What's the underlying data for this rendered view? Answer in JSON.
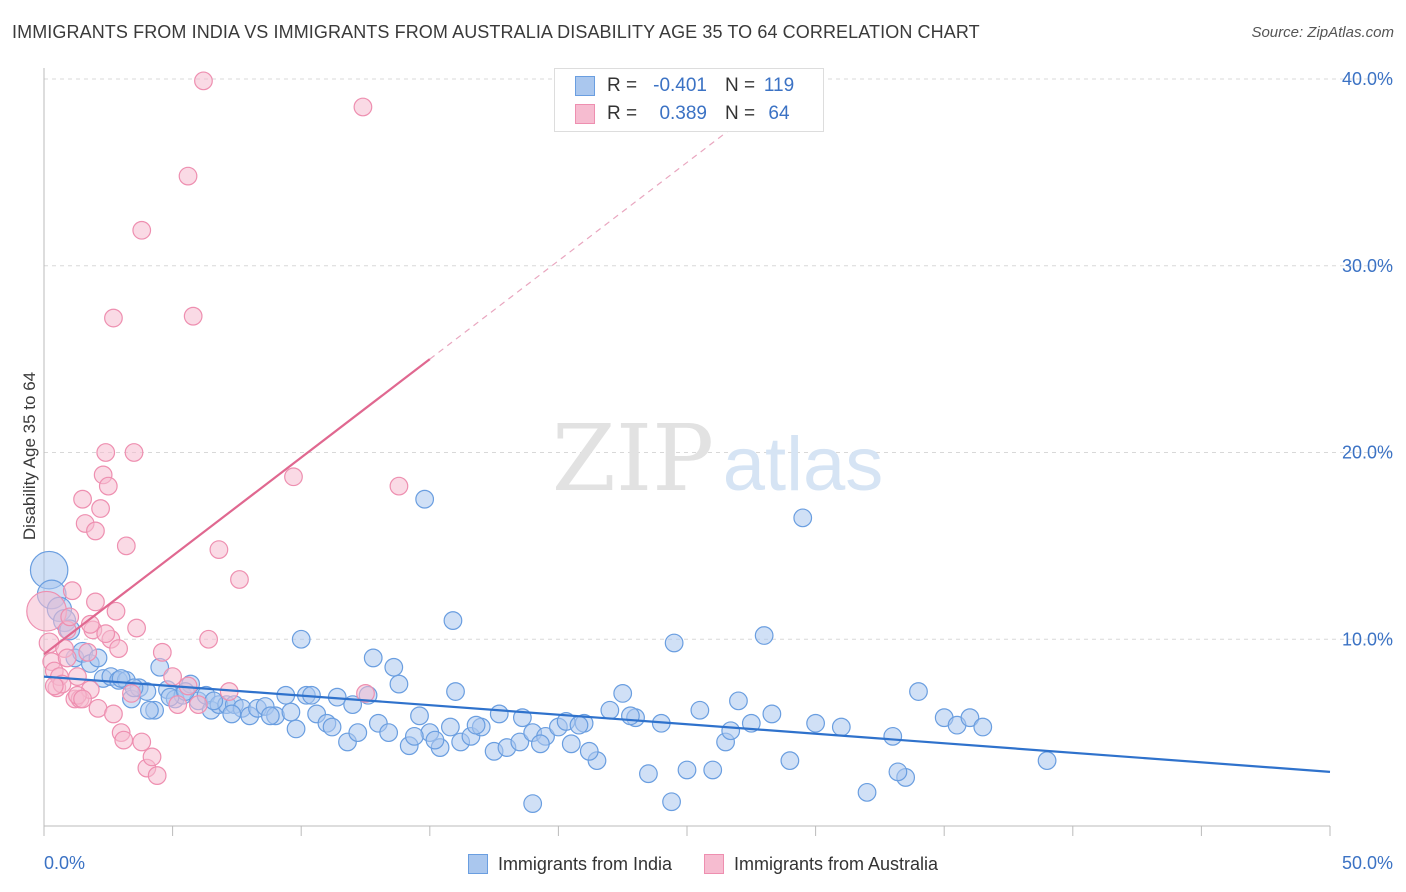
{
  "title": "IMMIGRANTS FROM INDIA VS IMMIGRANTS FROM AUSTRALIA DISABILITY AGE 35 TO 64 CORRELATION CHART",
  "source": "Source: ZipAtlas.com",
  "watermark": {
    "zip": "ZIP",
    "atlas": "atlas"
  },
  "stats": [
    {
      "r_label": "R =",
      "r_value": "-0.401",
      "n_label": "N =",
      "n_value": "119"
    },
    {
      "r_label": "R =",
      "r_value": "0.389",
      "n_label": "N =",
      "n_value": "64"
    }
  ],
  "legend": [
    "Immigrants from India",
    "Immigrants from Australia"
  ],
  "colors": {
    "india_fill": "#aac7ee",
    "india_stroke": "#6a9ee0",
    "india_line": "#2f72cc",
    "australia_fill": "#f6bcd0",
    "australia_stroke": "#ee8fb0",
    "australia_line": "#e06890",
    "grid": "#d8d8d8",
    "tick_label": "#3b72c4"
  },
  "chart_data": {
    "type": "scatter",
    "title": "IMMIGRANTS FROM INDIA VS IMMIGRANTS FROM AUSTRALIA DISABILITY AGE 35 TO 64 CORRELATION CHART",
    "xlabel": "",
    "ylabel": "Disability Age 35 to 64",
    "xlim": [
      0,
      50
    ],
    "ylim": [
      0,
      40
    ],
    "x_tick_labels": [
      {
        "value": 0,
        "label": "0.0%"
      },
      {
        "value": 50,
        "label": "50.0%"
      }
    ],
    "y_tick_labels": [
      {
        "value": 10,
        "label": "10.0%"
      },
      {
        "value": 20,
        "label": "20.0%"
      },
      {
        "value": 30,
        "label": "30.0%"
      },
      {
        "value": 40,
        "label": "40.0%"
      }
    ],
    "grid": true,
    "legend_position": "bottom",
    "series": [
      {
        "name": "Immigrants from India",
        "r": -0.401,
        "n": 119,
        "trend": {
          "x": [
            0,
            50
          ],
          "y": [
            8.0,
            2.9
          ],
          "dashed_x": null
        },
        "points": [
          [
            0.2,
            13.7,
            17
          ],
          [
            0.3,
            12.4,
            13
          ],
          [
            0.6,
            11.6,
            11
          ],
          [
            0.8,
            11.0,
            10
          ],
          [
            1.0,
            10.5,
            9
          ],
          [
            1.2,
            9.0,
            8
          ],
          [
            1.5,
            9.3,
            9
          ],
          [
            1.8,
            8.7,
            8
          ],
          [
            2.1,
            9.0,
            8
          ],
          [
            2.3,
            7.9,
            8
          ],
          [
            2.6,
            8.0,
            8
          ],
          [
            2.9,
            7.8,
            8
          ],
          [
            3.2,
            7.8,
            8
          ],
          [
            3.4,
            6.8,
            8
          ],
          [
            3.7,
            7.4,
            8
          ],
          [
            4.0,
            7.2,
            8
          ],
          [
            4.3,
            6.2,
            8
          ],
          [
            4.5,
            8.5,
            8
          ],
          [
            4.8,
            7.3,
            8
          ],
          [
            5.1,
            6.8,
            8
          ],
          [
            5.4,
            7.0,
            8
          ],
          [
            5.7,
            7.6,
            8
          ],
          [
            6.0,
            6.7,
            8
          ],
          [
            6.3,
            7.0,
            8
          ],
          [
            6.5,
            6.2,
            8
          ],
          [
            6.8,
            6.5,
            8
          ],
          [
            7.1,
            6.5,
            8
          ],
          [
            7.4,
            6.5,
            8
          ],
          [
            7.7,
            6.3,
            8
          ],
          [
            8.0,
            5.9,
            8
          ],
          [
            8.3,
            6.3,
            8
          ],
          [
            8.6,
            6.4,
            8
          ],
          [
            9.0,
            5.9,
            8
          ],
          [
            9.4,
            7.0,
            8
          ],
          [
            9.8,
            5.2,
            8
          ],
          [
            10.2,
            7.0,
            8
          ],
          [
            10.6,
            6.0,
            8
          ],
          [
            11.0,
            5.5,
            8
          ],
          [
            11.4,
            6.9,
            8
          ],
          [
            11.8,
            4.5,
            8
          ],
          [
            12.2,
            5.0,
            8
          ],
          [
            12.6,
            7.0,
            8
          ],
          [
            13.0,
            5.5,
            8
          ],
          [
            13.4,
            5.0,
            8
          ],
          [
            13.8,
            7.6,
            8
          ],
          [
            14.2,
            4.3,
            8
          ],
          [
            14.6,
            5.9,
            8
          ],
          [
            15.0,
            5.0,
            8
          ],
          [
            15.4,
            4.2,
            8
          ],
          [
            15.8,
            5.3,
            8
          ],
          [
            16.2,
            4.5,
            8
          ],
          [
            16.6,
            4.8,
            8
          ],
          [
            17.0,
            5.3,
            8
          ],
          [
            17.5,
            4.0,
            8
          ],
          [
            18.0,
            4.2,
            8
          ],
          [
            18.5,
            4.5,
            8
          ],
          [
            19.0,
            5.0,
            8
          ],
          [
            19.5,
            4.8,
            8
          ],
          [
            20.0,
            5.3,
            8
          ],
          [
            20.5,
            4.4,
            8
          ],
          [
            21.0,
            5.5,
            8
          ],
          [
            21.5,
            3.5,
            8
          ],
          [
            22.0,
            6.2,
            8
          ],
          [
            3.0,
            7.9,
            8
          ],
          [
            3.5,
            7.4,
            8
          ],
          [
            4.1,
            6.2,
            8
          ],
          [
            4.9,
            6.9,
            8
          ],
          [
            5.5,
            7.2,
            8
          ],
          [
            6.6,
            6.7,
            8
          ],
          [
            7.3,
            6.0,
            8
          ],
          [
            8.8,
            5.9,
            8
          ],
          [
            9.6,
            6.1,
            8
          ],
          [
            10.4,
            7.0,
            8
          ],
          [
            11.2,
            5.3,
            8
          ],
          [
            12.0,
            6.5,
            8
          ],
          [
            12.8,
            9.0,
            8
          ],
          [
            13.6,
            8.5,
            8
          ],
          [
            14.4,
            4.8,
            8
          ],
          [
            15.2,
            4.6,
            8
          ],
          [
            16.0,
            7.2,
            8
          ],
          [
            16.8,
            5.4,
            8
          ],
          [
            17.7,
            6.0,
            8
          ],
          [
            18.6,
            5.8,
            8
          ],
          [
            19.3,
            4.4,
            8
          ],
          [
            20.3,
            5.6,
            8
          ],
          [
            21.2,
            4.0,
            8
          ],
          [
            22.5,
            7.1,
            8
          ],
          [
            23.0,
            5.8,
            8
          ],
          [
            23.5,
            2.8,
            8
          ],
          [
            24.0,
            5.5,
            8
          ],
          [
            24.5,
            9.8,
            8
          ],
          [
            25.0,
            3.0,
            8
          ],
          [
            25.5,
            6.2,
            8
          ],
          [
            26.0,
            3.0,
            8
          ],
          [
            26.5,
            4.5,
            8
          ],
          [
            27.0,
            6.7,
            8
          ],
          [
            27.5,
            5.5,
            8
          ],
          [
            28.0,
            10.2,
            8
          ],
          [
            28.3,
            6.0,
            8
          ],
          [
            29.0,
            3.5,
            8
          ],
          [
            29.5,
            16.5,
            8
          ],
          [
            30.0,
            5.5,
            8
          ],
          [
            31.0,
            5.3,
            8
          ],
          [
            32.0,
            1.8,
            8
          ],
          [
            33.0,
            4.8,
            8
          ],
          [
            33.5,
            2.6,
            8
          ],
          [
            34.0,
            7.2,
            8
          ],
          [
            35.0,
            5.8,
            8
          ],
          [
            35.5,
            5.4,
            8
          ],
          [
            36.0,
            5.8,
            8
          ],
          [
            36.5,
            5.3,
            8
          ],
          [
            39.0,
            3.5,
            8
          ],
          [
            14.8,
            17.5,
            8
          ],
          [
            10.0,
            10.0,
            8
          ],
          [
            15.9,
            11.0,
            8
          ],
          [
            20.8,
            5.4,
            8
          ],
          [
            22.8,
            5.9,
            8
          ],
          [
            24.4,
            1.3,
            8
          ],
          [
            19.0,
            1.2,
            8
          ],
          [
            26.7,
            5.1,
            8
          ],
          [
            33.2,
            2.9,
            8
          ]
        ]
      },
      {
        "name": "Immigrants from Australia",
        "r": 0.389,
        "n": 64,
        "trend": {
          "x": [
            0,
            15
          ],
          "y": [
            9.2,
            25.0
          ],
          "dashed_x": [
            15,
            27.5
          ]
        },
        "points": [
          [
            0.1,
            11.5,
            18
          ],
          [
            0.2,
            9.8,
            9
          ],
          [
            0.3,
            8.8,
            8
          ],
          [
            0.4,
            8.3,
            8
          ],
          [
            0.5,
            7.4,
            8
          ],
          [
            0.6,
            8.0,
            8
          ],
          [
            0.7,
            7.6,
            8
          ],
          [
            0.8,
            9.5,
            8
          ],
          [
            0.9,
            10.5,
            8
          ],
          [
            1.0,
            11.2,
            8
          ],
          [
            1.1,
            12.6,
            8
          ],
          [
            1.2,
            6.8,
            8
          ],
          [
            1.3,
            8.0,
            8
          ],
          [
            1.4,
            6.8,
            8
          ],
          [
            1.5,
            17.5,
            8
          ],
          [
            1.6,
            16.2,
            8
          ],
          [
            1.7,
            9.3,
            8
          ],
          [
            1.8,
            7.3,
            8
          ],
          [
            1.9,
            10.5,
            8
          ],
          [
            2.0,
            15.8,
            8
          ],
          [
            2.1,
            6.3,
            8
          ],
          [
            2.2,
            17.0,
            8
          ],
          [
            2.3,
            18.8,
            8
          ],
          [
            2.4,
            20.0,
            8
          ],
          [
            2.5,
            18.2,
            8
          ],
          [
            2.6,
            10.0,
            8
          ],
          [
            2.7,
            6.0,
            8
          ],
          [
            2.8,
            11.5,
            8
          ],
          [
            2.9,
            9.5,
            8
          ],
          [
            3.0,
            5.0,
            8
          ],
          [
            3.2,
            15.0,
            8
          ],
          [
            3.4,
            7.1,
            8
          ],
          [
            3.6,
            10.6,
            8
          ],
          [
            3.8,
            4.5,
            8
          ],
          [
            4.0,
            3.1,
            8
          ],
          [
            4.2,
            3.7,
            8
          ],
          [
            4.4,
            2.7,
            8
          ],
          [
            4.6,
            9.3,
            8
          ],
          [
            5.0,
            8.0,
            8
          ],
          [
            5.2,
            6.5,
            8
          ],
          [
            5.6,
            7.5,
            8
          ],
          [
            5.8,
            27.3,
            8
          ],
          [
            6.0,
            6.5,
            8
          ],
          [
            6.4,
            10.0,
            8
          ],
          [
            6.8,
            14.8,
            8
          ],
          [
            7.2,
            7.2,
            8
          ],
          [
            7.6,
            13.2,
            8
          ],
          [
            2.7,
            27.2,
            8
          ],
          [
            3.8,
            31.9,
            8
          ],
          [
            3.5,
            20.0,
            8
          ],
          [
            5.6,
            34.8,
            8
          ],
          [
            6.2,
            39.9,
            8
          ],
          [
            12.4,
            38.5,
            8
          ],
          [
            9.7,
            18.7,
            8
          ],
          [
            13.8,
            18.2,
            8
          ],
          [
            12.5,
            7.1,
            8
          ],
          [
            0.4,
            7.5,
            8
          ],
          [
            0.9,
            9.0,
            8
          ],
          [
            1.3,
            7.0,
            8
          ],
          [
            1.8,
            10.8,
            8
          ],
          [
            2.4,
            10.3,
            8
          ],
          [
            3.1,
            4.6,
            8
          ],
          [
            1.5,
            6.8,
            8
          ],
          [
            2.0,
            12.0,
            8
          ]
        ]
      }
    ]
  }
}
